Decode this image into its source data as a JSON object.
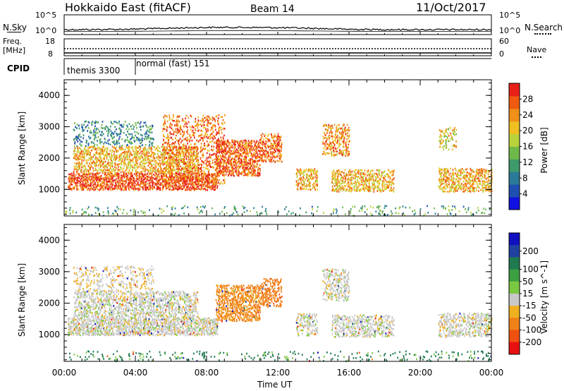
{
  "header": {
    "radar": "Hokkaido East (fitACF)",
    "beam": "Beam 14",
    "date": "11/Oct/2017"
  },
  "noise_panel": {
    "left_label": "N.Sky",
    "right_label": "N.Search",
    "left_ticks": [
      "10^5",
      "10^0"
    ],
    "right_ticks": [
      "10^5",
      "10^0"
    ]
  },
  "freq_panel": {
    "left_label_line1": "Freq.",
    "left_label_line2": "[MHz]",
    "left_ticks": [
      "18",
      "8"
    ],
    "right_label": "Nave",
    "right_ticks": [
      "60",
      "0"
    ]
  },
  "cpid_panel": {
    "label": "CPID",
    "segments": [
      {
        "name": "themis",
        "id": "3300"
      },
      {
        "name": "normal (fast)",
        "id": "151"
      }
    ]
  },
  "colors": {
    "power": [
      "#1010e0",
      "#1f4fb0",
      "#2a7a9a",
      "#3e9a6a",
      "#6fb84a",
      "#b8d23c",
      "#f0c020",
      "#f09018",
      "#f05a10",
      "#e82018"
    ],
    "velocity": [
      "#1010c0",
      "#2040a0",
      "#207a50",
      "#3aa040",
      "#7ac840",
      "#c8c8c8",
      "#c8c8c8",
      "#f0b020",
      "#f08018",
      "#f05010",
      "#e81010"
    ]
  },
  "chart_data": [
    {
      "type": "heatmap",
      "name": "power",
      "ylabel": "Slant Range [km]",
      "ylim": [
        150,
        4500
      ],
      "yticks": [
        1000,
        2000,
        3000,
        4000
      ],
      "xlim": [
        0,
        24
      ],
      "colorbar": {
        "label": "Power [dB]",
        "range": [
          0,
          32
        ],
        "ticks": [
          4,
          8,
          12,
          16,
          20,
          24,
          28
        ]
      },
      "bands": [
        {
          "t0": 0.2,
          "t1": 8.6,
          "r0": 1000,
          "r1": 1550,
          "v": 28,
          "density": 0.85
        },
        {
          "t0": 0.5,
          "t1": 7.5,
          "r0": 1550,
          "r1": 2400,
          "v": 22,
          "density": 0.6
        },
        {
          "t0": 0.5,
          "t1": 5.0,
          "r0": 2400,
          "r1": 3200,
          "v": 10,
          "density": 0.3
        },
        {
          "t0": 5.5,
          "t1": 9.0,
          "r0": 1200,
          "r1": 3400,
          "v": 26,
          "density": 0.35
        },
        {
          "t0": 8.5,
          "t1": 11.0,
          "r0": 1450,
          "r1": 2600,
          "v": 27,
          "density": 0.75
        },
        {
          "t0": 11.0,
          "t1": 12.2,
          "r0": 1900,
          "r1": 2800,
          "v": 26,
          "density": 0.7
        },
        {
          "t0": 13.0,
          "t1": 14.2,
          "r0": 1000,
          "r1": 1700,
          "v": 22,
          "density": 0.6
        },
        {
          "t0": 14.5,
          "t1": 16.0,
          "r0": 2100,
          "r1": 3100,
          "v": 24,
          "density": 0.55
        },
        {
          "t0": 15.0,
          "t1": 18.5,
          "r0": 950,
          "r1": 1650,
          "v": 22,
          "density": 0.6
        },
        {
          "t0": 21.0,
          "t1": 24.0,
          "r0": 950,
          "r1": 1700,
          "v": 22,
          "density": 0.65
        },
        {
          "t0": 21.0,
          "t1": 22.0,
          "r0": 2300,
          "r1": 3000,
          "v": 20,
          "density": 0.35
        },
        {
          "t0": 0.0,
          "t1": 24.0,
          "r0": 180,
          "r1": 500,
          "v": 12,
          "density": 0.12
        }
      ]
    },
    {
      "type": "heatmap",
      "name": "velocity",
      "ylabel": "Slant Range [km]",
      "xlabel": "Time UT",
      "ylim": [
        150,
        4500
      ],
      "yticks": [
        1000,
        2000,
        3000,
        4000
      ],
      "xlim": [
        0,
        24
      ],
      "xticks": [
        "00:00",
        "04:00",
        "08:00",
        "12:00",
        "16:00",
        "20:00",
        "00:00"
      ],
      "colorbar": {
        "label": "Velocity [m s^-1]",
        "levels": [
          200,
          100,
          50,
          15,
          -15,
          -50,
          -100,
          -200
        ]
      },
      "bands": [
        {
          "t0": 0.2,
          "t1": 8.6,
          "r0": 1000,
          "r1": 1550,
          "v": 0,
          "density": 0.85
        },
        {
          "t0": 0.5,
          "t1": 7.5,
          "r0": 1550,
          "r1": 2400,
          "v": 0,
          "density": 0.6
        },
        {
          "t0": 0.5,
          "t1": 5.0,
          "r0": 2400,
          "r1": 3200,
          "v": -10,
          "density": 0.3
        },
        {
          "t0": 8.5,
          "t1": 11.0,
          "r0": 1450,
          "r1": 2600,
          "v": -40,
          "density": 0.7
        },
        {
          "t0": 11.0,
          "t1": 12.2,
          "r0": 1900,
          "r1": 2800,
          "v": -60,
          "density": 0.6
        },
        {
          "t0": 13.0,
          "t1": 14.2,
          "r0": 1000,
          "r1": 1700,
          "v": 0,
          "density": 0.55
        },
        {
          "t0": 14.5,
          "t1": 16.0,
          "r0": 2100,
          "r1": 3100,
          "v": 0,
          "density": 0.5
        },
        {
          "t0": 15.0,
          "t1": 18.5,
          "r0": 950,
          "r1": 1650,
          "v": 0,
          "density": 0.55
        },
        {
          "t0": 21.0,
          "t1": 24.0,
          "r0": 950,
          "r1": 1700,
          "v": 0,
          "density": 0.6
        },
        {
          "t0": 0.0,
          "t1": 24.0,
          "r0": 180,
          "r1": 500,
          "v": 40,
          "density": 0.12
        }
      ]
    }
  ]
}
